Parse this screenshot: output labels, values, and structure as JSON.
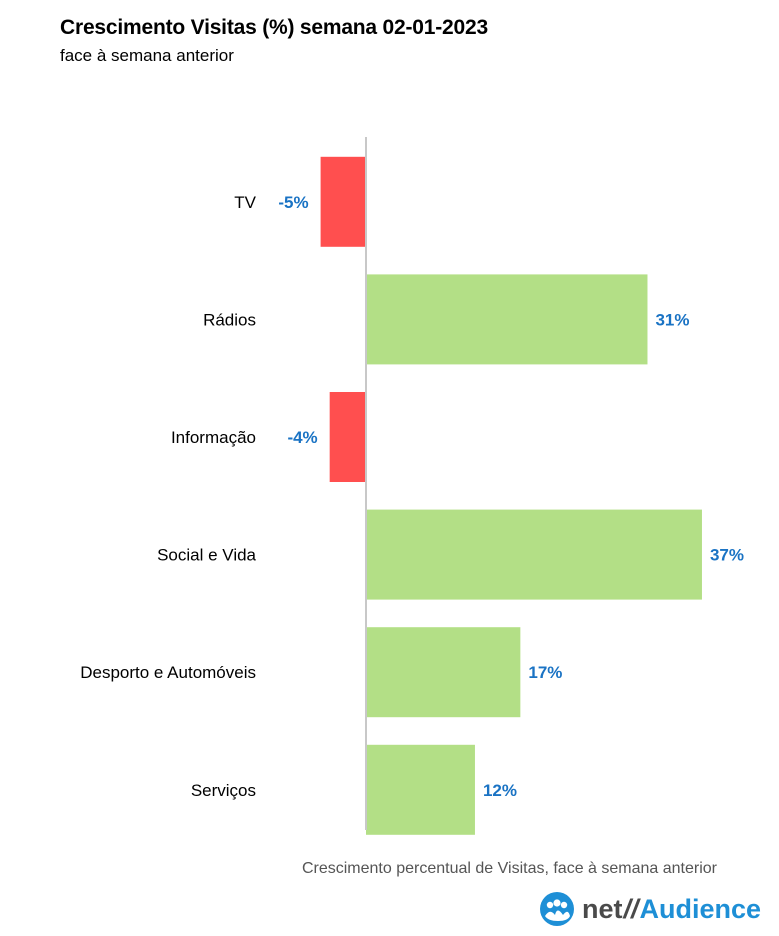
{
  "header": {
    "title": "Crescimento Visitas (%) semana 02-01-2023",
    "subtitle": "face à semana anterior"
  },
  "axis_caption": "Crescimento percentual de Visitas, face à semana anterior",
  "logo": {
    "prefix": "net",
    "separator": "//",
    "suffix": "Audience",
    "icon": "people-group-icon"
  },
  "colors": {
    "positive": "#b3df86",
    "negative": "#ff4f4f",
    "value_label": "#1a73c4",
    "axis_line": "#c8c8c8",
    "logo_blue": "#1e8fd6"
  },
  "chart_data": {
    "type": "bar",
    "orientation": "horizontal",
    "title": "Crescimento Visitas (%) semana 02-01-2023",
    "subtitle": "face à semana anterior",
    "xlabel": "Crescimento percentual de Visitas, face à semana anterior",
    "ylabel": "",
    "categories": [
      "TV",
      "Rádios",
      "Informação",
      "Social e Vida",
      "Desporto e Automóveis",
      "Serviços"
    ],
    "values": [
      -5,
      31,
      -4,
      37,
      17,
      12
    ],
    "value_labels": [
      "-5%",
      "31%",
      "-4%",
      "37%",
      "17%",
      "12%"
    ],
    "unit": "%",
    "xlim": [
      -7,
      37
    ],
    "grid": false,
    "legend": "none"
  }
}
